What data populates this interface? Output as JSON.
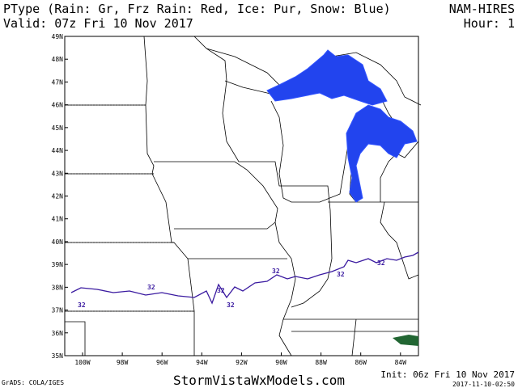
{
  "header": {
    "title": "PType (Rain: Gr, Frz Rain: Red, Ice: Pur, Snow: Blue)",
    "valid": "Valid: 07z Fri 10 Nov 2017",
    "model": "NAM-HIRES",
    "hour": "Hour: 1"
  },
  "map": {
    "lat_labels": [
      "49N",
      "48N",
      "47N",
      "46N",
      "45N",
      "44N",
      "43N",
      "42N",
      "41N",
      "40N",
      "39N",
      "38N",
      "37N",
      "36N",
      "35N"
    ],
    "lon_labels": [
      "100W",
      "98W",
      "96W",
      "94W",
      "92W",
      "90W",
      "88W",
      "86W",
      "84W"
    ],
    "contour_labels": [
      "32",
      "32",
      "32",
      "32",
      "32",
      "32",
      "32"
    ]
  },
  "footer": {
    "site": "StormVistaWxModels.com",
    "grads": "GrADS: COLA/IGES",
    "init": "Init: 06z Fri 10 Nov 2017",
    "timestamp": "2017-11-10-02:50"
  }
}
